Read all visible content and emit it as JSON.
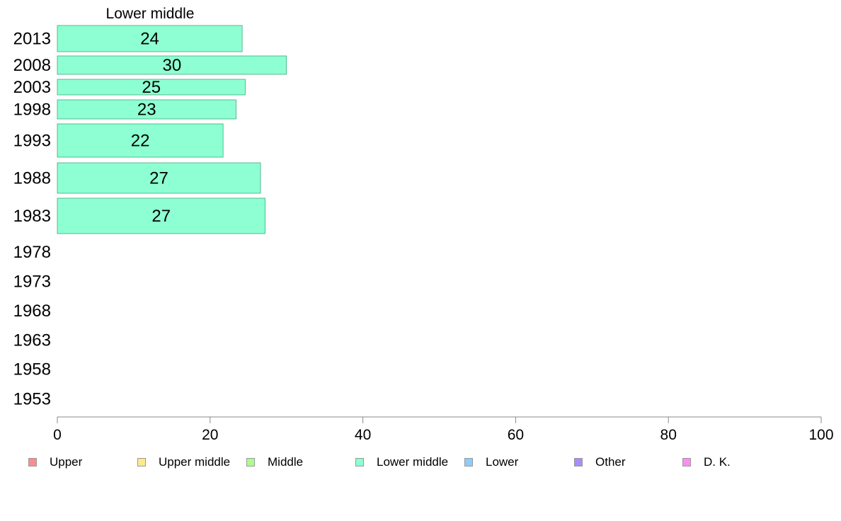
{
  "chart_data": {
    "type": "bar",
    "orientation": "horizontal",
    "title": "Lower middle",
    "categories": [
      "2013",
      "2008",
      "2003",
      "1998",
      "1993",
      "1988",
      "1983",
      "1978",
      "1973",
      "1968",
      "1963",
      "1958",
      "1953"
    ],
    "series": [
      {
        "name": "Lower middle",
        "color": "#8effd2",
        "values": [
          24.2,
          30.0,
          24.6,
          23.4,
          21.7,
          26.6,
          27.2,
          null,
          null,
          null,
          null,
          null,
          null
        ],
        "labels": [
          "24",
          "30",
          "25",
          "23",
          "22",
          "27",
          "27",
          "",
          "",
          "",
          "",
          "",
          ""
        ]
      }
    ],
    "xlim": [
      0,
      100
    ],
    "xticks": [
      "0",
      "20",
      "40",
      "60",
      "80",
      "100"
    ],
    "grid": false,
    "legend_position": "bottom"
  },
  "legend": [
    {
      "label": "Upper",
      "color": "#ff8c8c"
    },
    {
      "label": "Upper middle",
      "color": "#ffe98c"
    },
    {
      "label": "Middle",
      "color": "#a8ff8c"
    },
    {
      "label": "Lower middle",
      "color": "#8effd2"
    },
    {
      "label": "Lower",
      "color": "#8cccff"
    },
    {
      "label": "Other",
      "color": "#a98cff"
    },
    {
      "label": "D. K.",
      "color": "#ff8cf0"
    }
  ]
}
